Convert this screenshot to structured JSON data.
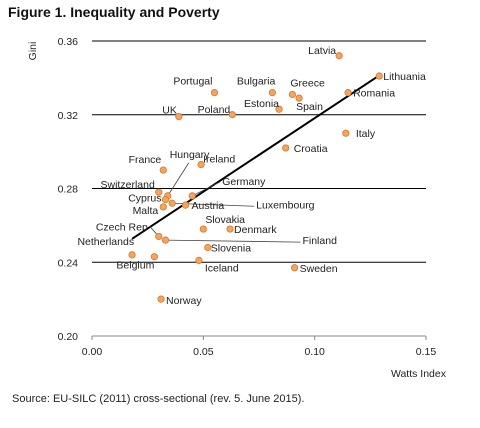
{
  "figure_title": "Figure 1. Inequality and Poverty",
  "source": "Source: EU-SILC (2011) cross-sectional (rev. 5. June 2015).",
  "colors": {
    "point_fill": "#F4A460",
    "point_stroke": "#D07A2A",
    "trendline": "#000000",
    "gridline": "#000000"
  },
  "chart_data": {
    "type": "scatter",
    "title": "",
    "xlabel": "Watts Index",
    "ylabel": "Gini",
    "xlim": [
      0,
      0.15
    ],
    "ylim": [
      0.2,
      0.36
    ],
    "xticks": [
      {
        "value": 0,
        "label": "0.00"
      },
      {
        "value": 0.05,
        "label": "0.05"
      },
      {
        "value": 0.1,
        "label": "0.10"
      },
      {
        "value": 0.15,
        "label": "0.15"
      }
    ],
    "yticks": [
      {
        "value": 0.2,
        "label": "0.20"
      },
      {
        "value": 0.24,
        "label": "0.24"
      },
      {
        "value": 0.28,
        "label": "0.28"
      },
      {
        "value": 0.32,
        "label": "0.32"
      },
      {
        "value": 0.36,
        "label": "0.36"
      }
    ],
    "grid": "horizontal",
    "trendline": {
      "x": [
        0.018,
        0.129
      ],
      "y": [
        0.2527,
        0.3413
      ]
    },
    "points": [
      {
        "name": "Latvia",
        "x": 0.111,
        "y": 0.352
      },
      {
        "name": "Lithuania",
        "x": 0.129,
        "y": 0.341
      },
      {
        "name": "Romania",
        "x": 0.115,
        "y": 0.332
      },
      {
        "name": "Portugal",
        "x": 0.055,
        "y": 0.332
      },
      {
        "name": "Bulgaria",
        "x": 0.081,
        "y": 0.332
      },
      {
        "name": "Greece",
        "x": 0.09,
        "y": 0.331
      },
      {
        "name": "Spain",
        "x": 0.093,
        "y": 0.329
      },
      {
        "name": "Estonia",
        "x": 0.084,
        "y": 0.323
      },
      {
        "name": "Poland",
        "x": 0.063,
        "y": 0.32
      },
      {
        "name": "UK",
        "x": 0.039,
        "y": 0.319
      },
      {
        "name": "Italy",
        "x": 0.114,
        "y": 0.31
      },
      {
        "name": "Croatia",
        "x": 0.087,
        "y": 0.302
      },
      {
        "name": "Ireland",
        "x": 0.049,
        "y": 0.293
      },
      {
        "name": "France",
        "x": 0.032,
        "y": 0.29
      },
      {
        "name": "Hungary",
        "x": 0.034,
        "y": 0.276
      },
      {
        "name": "Germany",
        "x": 0.045,
        "y": 0.276
      },
      {
        "name": "Switzerland",
        "x": 0.03,
        "y": 0.278
      },
      {
        "name": "Cyprus",
        "x": 0.033,
        "y": 0.274
      },
      {
        "name": "Luxembourg",
        "x": 0.036,
        "y": 0.272
      },
      {
        "name": "Malta",
        "x": 0.032,
        "y": 0.27
      },
      {
        "name": "Austria",
        "x": 0.042,
        "y": 0.271
      },
      {
        "name": "Slovakia",
        "x": 0.05,
        "y": 0.258
      },
      {
        "name": "Denmark",
        "x": 0.062,
        "y": 0.258
      },
      {
        "name": "Czech Rep",
        "x": 0.03,
        "y": 0.254
      },
      {
        "name": "Finland",
        "x": 0.033,
        "y": 0.252
      },
      {
        "name": "Slovenia",
        "x": 0.052,
        "y": 0.248
      },
      {
        "name": "Netherlands",
        "x": 0.018,
        "y": 0.244
      },
      {
        "name": "Belgium",
        "x": 0.028,
        "y": 0.243
      },
      {
        "name": "Iceland",
        "x": 0.048,
        "y": 0.241
      },
      {
        "name": "Sweden",
        "x": 0.091,
        "y": 0.237
      },
      {
        "name": "Norway",
        "x": 0.031,
        "y": 0.22
      }
    ]
  }
}
